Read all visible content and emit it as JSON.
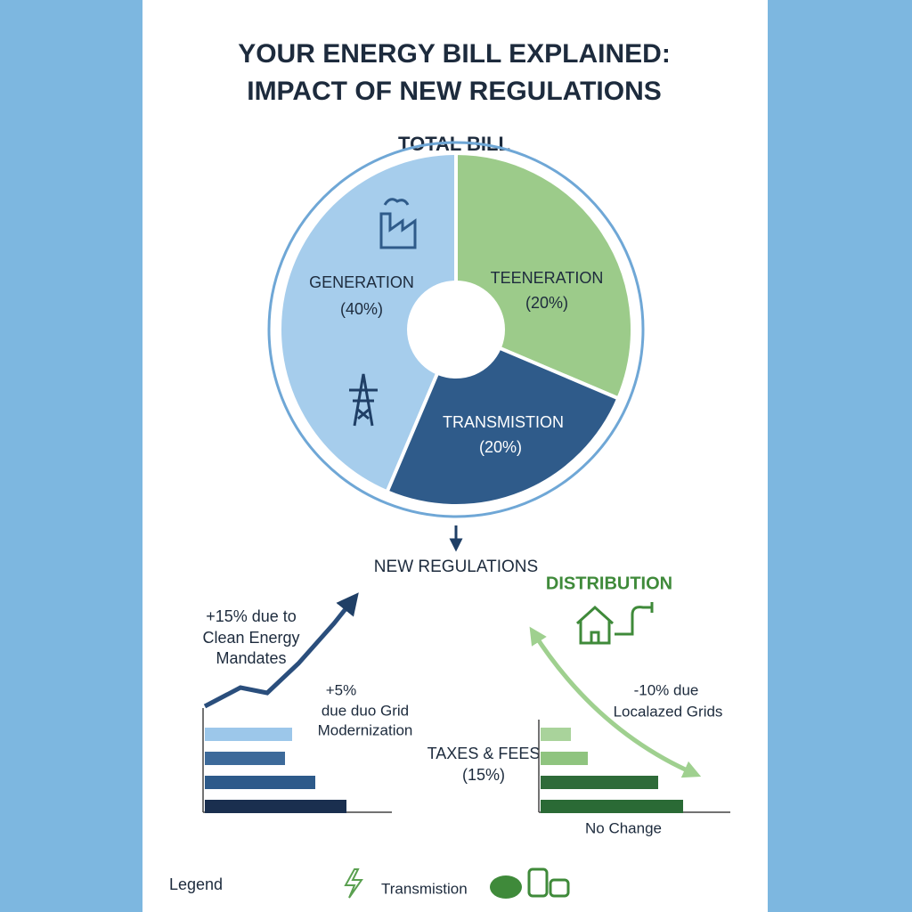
{
  "title": [
    "YOUR ENERGY BILL EXPLAINED:",
    "IMPACT OF NEW REGULATIONS"
  ],
  "pie": {
    "title": "TOTAL BILL",
    "segments": [
      {
        "label": "GENERATION",
        "share": "(40%)"
      },
      {
        "label": "TEENERATION",
        "share": "(20%)"
      },
      {
        "label": "TRANSMISTION",
        "share": "(20%)"
      }
    ]
  },
  "arrow_label": "NEW REGULATIONS",
  "left": {
    "note1": [
      "+15% due to",
      "Clean Energy",
      "Mandates"
    ],
    "note2": [
      "+5%",
      "due duo Grid",
      "Modernization"
    ]
  },
  "right": {
    "title": "DISTRIBUTION",
    "note": [
      "-10% due",
      "Localazed Grids"
    ],
    "taxes": [
      "TAXES & FEES",
      "(15%)"
    ],
    "footer": "No Change"
  },
  "legend": {
    "title": "Legend",
    "item": "Transmistion"
  }
}
